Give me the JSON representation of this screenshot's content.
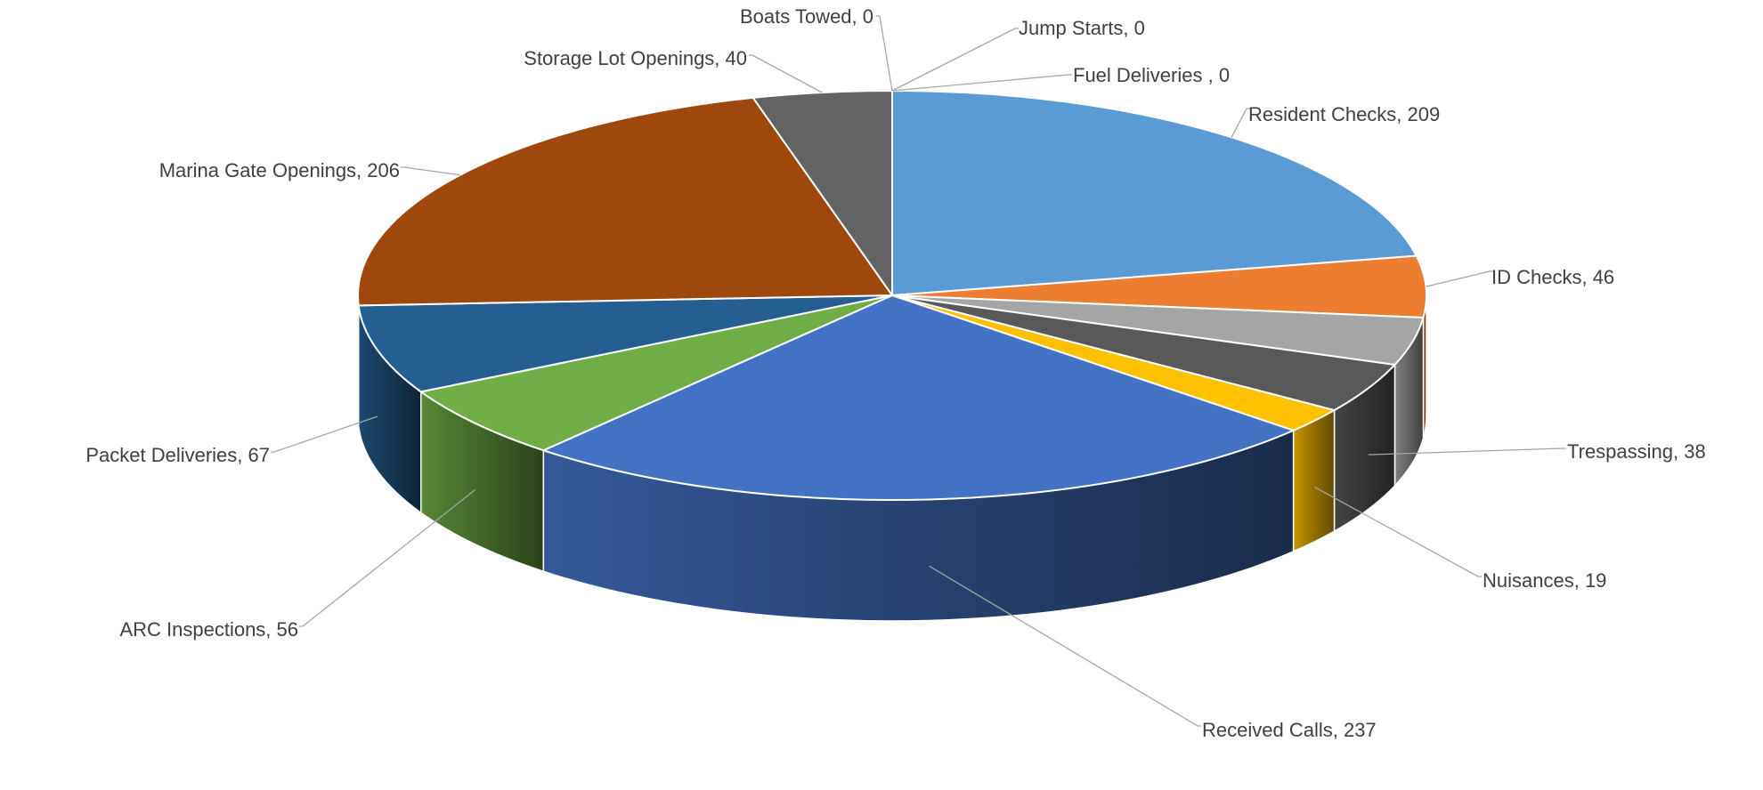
{
  "chart_data": {
    "type": "pie",
    "style": "3d",
    "title": "",
    "start_angle_deg": 0,
    "direction": "clockwise",
    "slices": [
      {
        "label": "Resident Checks",
        "value": 209,
        "color": "#5b9bd5"
      },
      {
        "label": "ID Checks",
        "value": 46,
        "color": "#ed7d31"
      },
      {
        "label": "",
        "value": 36,
        "color": "#a5a5a5"
      },
      {
        "label": "Trespassing",
        "value": 38,
        "color": "#595959"
      },
      {
        "label": "Nuisances",
        "value": 19,
        "color": "#ffc000"
      },
      {
        "label": "Received Calls",
        "value": 237,
        "color": "#4472c4"
      },
      {
        "label": "ARC Inspections",
        "value": 56,
        "color": "#70ad47"
      },
      {
        "label": "Packet Deliveries",
        "value": 67,
        "color": "#255e91"
      },
      {
        "label": "Marina Gate Openings",
        "value": 206,
        "color": "#9e480e"
      },
      {
        "label": "Storage Lot Openings",
        "value": 40,
        "color": "#636363"
      },
      {
        "label": "Boats Towed",
        "value": 0,
        "color": "#264478"
      },
      {
        "label": "Jump Starts",
        "value": 0,
        "color": "#43682b"
      },
      {
        "label": "Fuel Deliveries ",
        "value": 0,
        "color": "#997300"
      }
    ]
  }
}
